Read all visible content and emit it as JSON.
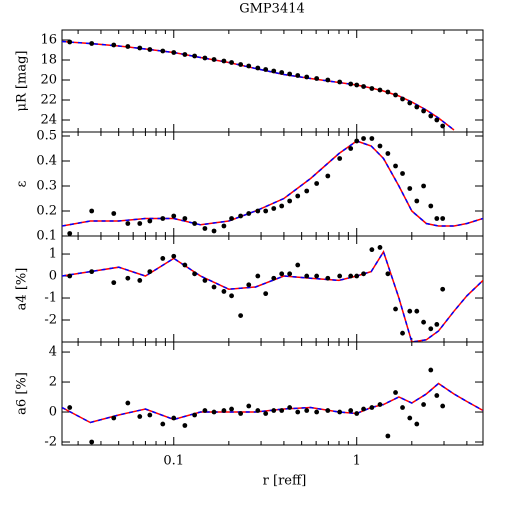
{
  "chart_data": [
    {
      "type": "scatter",
      "title": "GMP3414",
      "ylabel": "μR [mag]",
      "xlog": true,
      "xlim": [
        0.0245,
        4.9
      ],
      "xticks": [
        0.1,
        1
      ],
      "ylim": [
        25.2,
        15
      ],
      "yticks": [
        16,
        18,
        20,
        22,
        24
      ],
      "point_color": "#000000",
      "model_color": "#ff0000",
      "model_dash_color": "#0000ff",
      "x": [
        0.027,
        0.0356,
        0.047,
        0.0561,
        0.0652,
        0.074,
        0.0871,
        0.1,
        0.115,
        0.13,
        0.148,
        0.166,
        0.188,
        0.207,
        0.232,
        0.257,
        0.288,
        0.318,
        0.352,
        0.389,
        0.43,
        0.476,
        0.533,
        0.604,
        0.695,
        0.807,
        0.927,
        1,
        1.09,
        1.21,
        1.34,
        1.48,
        1.63,
        1.78,
        1.95,
        2.13,
        2.32,
        2.54,
        2.74,
        2.95
      ],
      "values": [
        16.2,
        16.35,
        16.5,
        16.65,
        16.8,
        16.95,
        17.1,
        17.25,
        17.45,
        17.6,
        17.8,
        17.95,
        18.1,
        18.25,
        18.45,
        18.6,
        18.8,
        18.95,
        19.1,
        19.25,
        19.4,
        19.55,
        19.7,
        19.85,
        20.0,
        20.2,
        20.4,
        20.5,
        20.65,
        20.85,
        21.0,
        21.2,
        21.5,
        21.9,
        22.3,
        22.7,
        23.1,
        23.6,
        24.0,
        24.6
      ],
      "model": {
        "x": [
          0.0245,
          0.035,
          0.05,
          0.07,
          0.1,
          0.14,
          0.2,
          0.28,
          0.4,
          0.56,
          0.8,
          1,
          1.2,
          1.4,
          1.7,
          2,
          2.4,
          2.8,
          3.4,
          4,
          4.9
        ],
        "values": [
          16.15,
          16.35,
          16.6,
          16.9,
          17.25,
          17.75,
          18.25,
          18.85,
          19.45,
          19.85,
          20.25,
          20.5,
          20.8,
          21.1,
          21.6,
          22.2,
          23.0,
          23.8,
          25.0,
          null,
          null
        ]
      }
    },
    {
      "type": "scatter",
      "ylabel": "ε",
      "xlog": true,
      "xlim": [
        0.0245,
        4.9
      ],
      "xticks": [
        0.1,
        1
      ],
      "ylim": [
        0.1,
        0.516
      ],
      "yticks": [
        0.1,
        0.2,
        0.3,
        0.4,
        0.5
      ],
      "point_color": "#000000",
      "model_color": "#ff0000",
      "model_dash_color": "#0000ff",
      "x": [
        0.027,
        0.0356,
        0.047,
        0.0561,
        0.0652,
        0.074,
        0.0871,
        0.1,
        0.115,
        0.13,
        0.148,
        0.166,
        0.188,
        0.207,
        0.232,
        0.257,
        0.288,
        0.318,
        0.352,
        0.389,
        0.43,
        0.476,
        0.533,
        0.604,
        0.695,
        0.807,
        0.927,
        1,
        1.09,
        1.21,
        1.34,
        1.48,
        1.63,
        1.78,
        1.95,
        2.13,
        2.32,
        2.54,
        2.74,
        2.95
      ],
      "values": [
        0.11,
        0.2,
        0.19,
        0.15,
        0.15,
        0.16,
        0.17,
        0.18,
        0.17,
        0.15,
        0.13,
        0.12,
        0.14,
        0.17,
        0.18,
        0.19,
        0.2,
        0.2,
        0.21,
        0.22,
        0.24,
        0.26,
        0.28,
        0.31,
        0.34,
        0.41,
        0.45,
        0.48,
        0.49,
        0.49,
        0.46,
        0.43,
        0.38,
        0.35,
        0.29,
        0.24,
        0.3,
        0.22,
        0.17,
        0.17
      ],
      "model": {
        "x": [
          0.0245,
          0.035,
          0.05,
          0.07,
          0.1,
          0.14,
          0.2,
          0.28,
          0.4,
          0.56,
          0.8,
          1,
          1.2,
          1.4,
          1.7,
          2,
          2.4,
          2.8,
          3.4,
          4,
          4.9
        ],
        "values": [
          0.14,
          0.16,
          0.16,
          0.17,
          0.17,
          0.145,
          0.16,
          0.2,
          0.25,
          0.33,
          0.43,
          0.48,
          0.46,
          0.41,
          0.3,
          0.2,
          0.15,
          0.14,
          0.14,
          0.15,
          0.17
        ]
      }
    },
    {
      "type": "scatter",
      "ylabel": "a4 [%]",
      "xlog": true,
      "xlim": [
        0.0245,
        4.9
      ],
      "xticks": [
        0.1,
        1
      ],
      "ylim": [
        -3.0,
        1.82
      ],
      "yticks": [
        -2,
        -1,
        0,
        1
      ],
      "point_color": "#000000",
      "model_color": "#ff0000",
      "model_dash_color": "#0000ff",
      "x": [
        0.027,
        0.0356,
        0.047,
        0.0561,
        0.0652,
        0.074,
        0.0871,
        0.1,
        0.115,
        0.13,
        0.148,
        0.166,
        0.188,
        0.207,
        0.232,
        0.257,
        0.288,
        0.318,
        0.352,
        0.389,
        0.43,
        0.476,
        0.533,
        0.604,
        0.695,
        0.807,
        0.927,
        1,
        1.09,
        1.21,
        1.34,
        1.48,
        1.63,
        1.78,
        1.95,
        2.13,
        2.32,
        2.54,
        2.74,
        2.95
      ],
      "values": [
        0,
        0.2,
        -0.3,
        -0.1,
        -0.2,
        0.2,
        0.8,
        0.9,
        0.5,
        0.1,
        -0.2,
        -0.5,
        -0.7,
        -0.9,
        -1.8,
        -0.4,
        0,
        -0.8,
        -0.1,
        0.1,
        0.1,
        0.5,
        0,
        0,
        -0.1,
        0,
        0,
        0,
        0.1,
        1.2,
        1.3,
        0.1,
        -1.5,
        -2.6,
        -1.6,
        -1.6,
        -2.1,
        -2.4,
        -2.2,
        -0.6
      ],
      "model": {
        "x": [
          0.0245,
          0.035,
          0.05,
          0.07,
          0.1,
          0.14,
          0.2,
          0.28,
          0.4,
          0.56,
          0.8,
          1,
          1.2,
          1.4,
          1.7,
          2,
          2.4,
          2.8,
          3.4,
          4,
          4.9
        ],
        "values": [
          0,
          0.2,
          0.4,
          0,
          0.8,
          0,
          -0.6,
          -0.5,
          0,
          -0.1,
          -0.2,
          0,
          0.2,
          1.1,
          -1,
          -3,
          -2.9,
          -2.5,
          -1.6,
          -0.9,
          -0.2
        ]
      }
    },
    {
      "type": "scatter",
      "ylabel": "a6 [%]",
      "xlabel": "r [reff]",
      "xlog": true,
      "xlim": [
        0.0245,
        4.9
      ],
      "xticks": [
        0.1,
        1
      ],
      "ylim": [
        -2.2,
        4.67
      ],
      "yticks": [
        -2,
        0,
        2,
        4
      ],
      "point_color": "#000000",
      "model_color": "#ff0000",
      "model_dash_color": "#0000ff",
      "x": [
        0.027,
        0.0356,
        0.047,
        0.0561,
        0.0652,
        0.074,
        0.0871,
        0.1,
        0.115,
        0.13,
        0.148,
        0.166,
        0.188,
        0.207,
        0.232,
        0.257,
        0.288,
        0.318,
        0.352,
        0.389,
        0.43,
        0.476,
        0.533,
        0.604,
        0.695,
        0.807,
        0.927,
        1,
        1.09,
        1.21,
        1.34,
        1.48,
        1.63,
        1.78,
        1.95,
        2.13,
        2.32,
        2.54,
        2.74,
        2.95
      ],
      "values": [
        0.3,
        -2.0,
        -0.4,
        0.6,
        -0.3,
        -0.2,
        -0.8,
        -0.4,
        -0.9,
        -0.2,
        0.1,
        0,
        0.1,
        0.2,
        -0.1,
        0.4,
        0.1,
        -0.1,
        0.1,
        0.1,
        0.3,
        0,
        0.1,
        0,
        0.1,
        0,
        0.1,
        -0.1,
        0.2,
        0.3,
        0.5,
        -1.6,
        1.3,
        0.3,
        -0.4,
        -0.8,
        0.5,
        2.8,
        1.1,
        0.4
      ],
      "model": {
        "x": [
          0.0245,
          0.035,
          0.05,
          0.07,
          0.1,
          0.14,
          0.2,
          0.28,
          0.4,
          0.56,
          0.8,
          1,
          1.2,
          1.4,
          1.7,
          2,
          2.4,
          2.8,
          3.4,
          4,
          4.9
        ],
        "values": [
          0.3,
          -0.7,
          -0.2,
          0.2,
          -0.5,
          0,
          0,
          0,
          0.2,
          0.3,
          0,
          -0.1,
          0.3,
          0.5,
          1.0,
          0.6,
          1.2,
          1.9,
          1.2,
          0.7,
          0.1
        ]
      }
    }
  ]
}
